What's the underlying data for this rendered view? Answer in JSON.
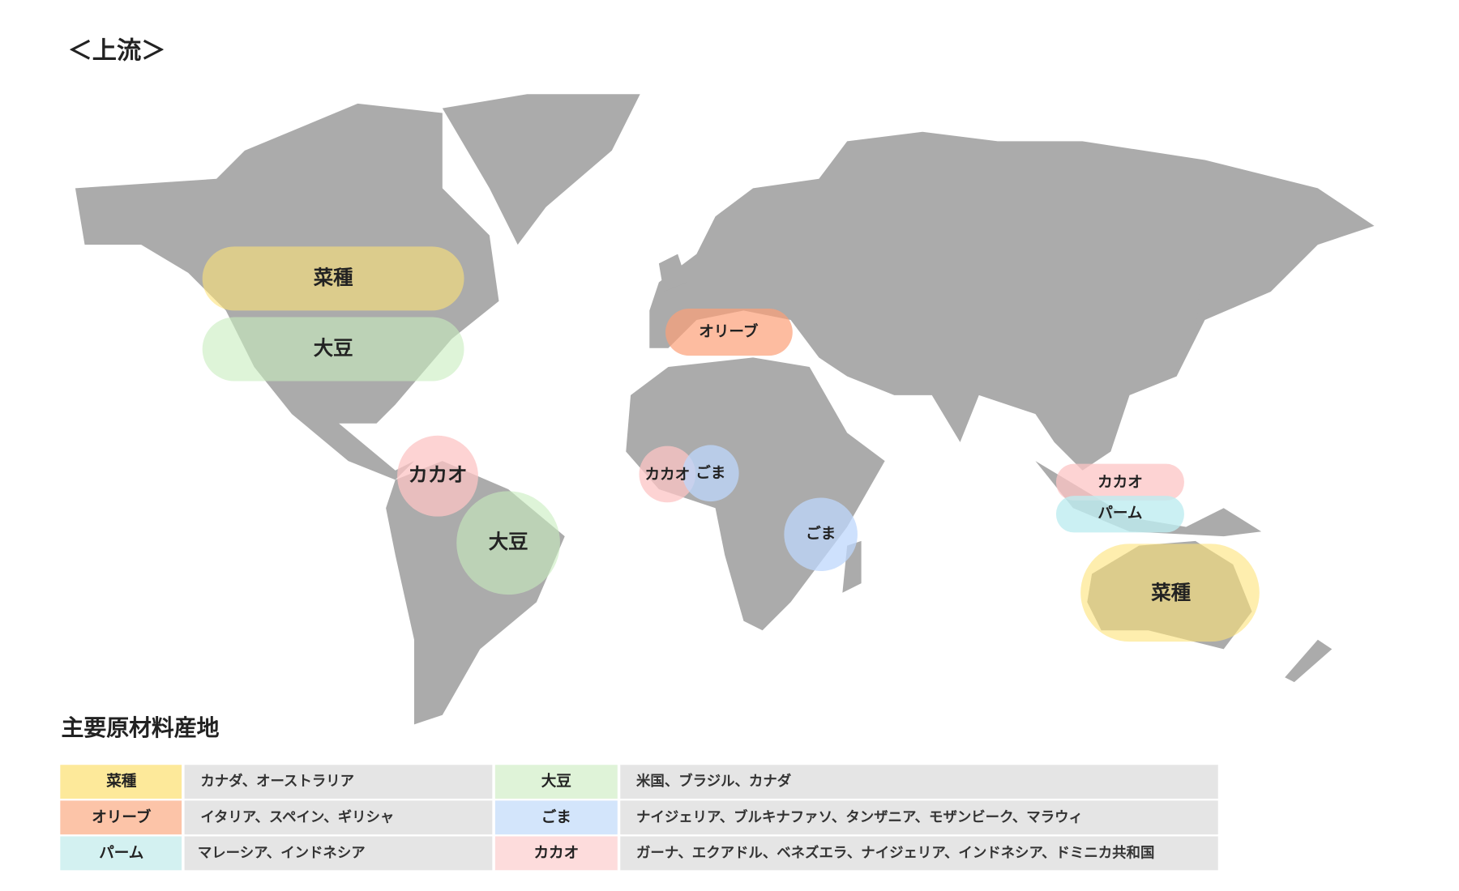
{
  "header": {
    "title": "＜上流＞"
  },
  "map": {
    "regions": [
      {
        "label": "菜種"
      },
      {
        "label": "大豆"
      },
      {
        "label": "オリーブ"
      },
      {
        "label": "カカオ"
      },
      {
        "label": "大豆"
      },
      {
        "label": "カカオ"
      },
      {
        "label": "ごま"
      },
      {
        "label": "ごま"
      },
      {
        "label": "カカオ"
      },
      {
        "label": "パーム"
      },
      {
        "label": "菜種"
      }
    ]
  },
  "legend": {
    "title": "主要原材料産地",
    "rows": [
      [
        {
          "item": "菜種",
          "origins": "カナダ、オーストラリア"
        },
        {
          "item": "大豆",
          "origins": "米国、ブラジル、カナダ"
        }
      ],
      [
        {
          "item": "オリーブ",
          "origins": "イタリア、スペイン、ギリシャ"
        },
        {
          "item": "ごま",
          "origins": "ナイジェリア、ブルキナファソ、タンザニア、モザンビーク、マラウィ"
        }
      ],
      [
        {
          "item": "パーム",
          "origins": "マレーシア、インドネシア"
        },
        {
          "item": "カカオ",
          "origins": "ガーナ、エクアドル、ベネズエラ、ナイジェリア、インドネシア、ドミニカ共和国"
        }
      ]
    ]
  }
}
